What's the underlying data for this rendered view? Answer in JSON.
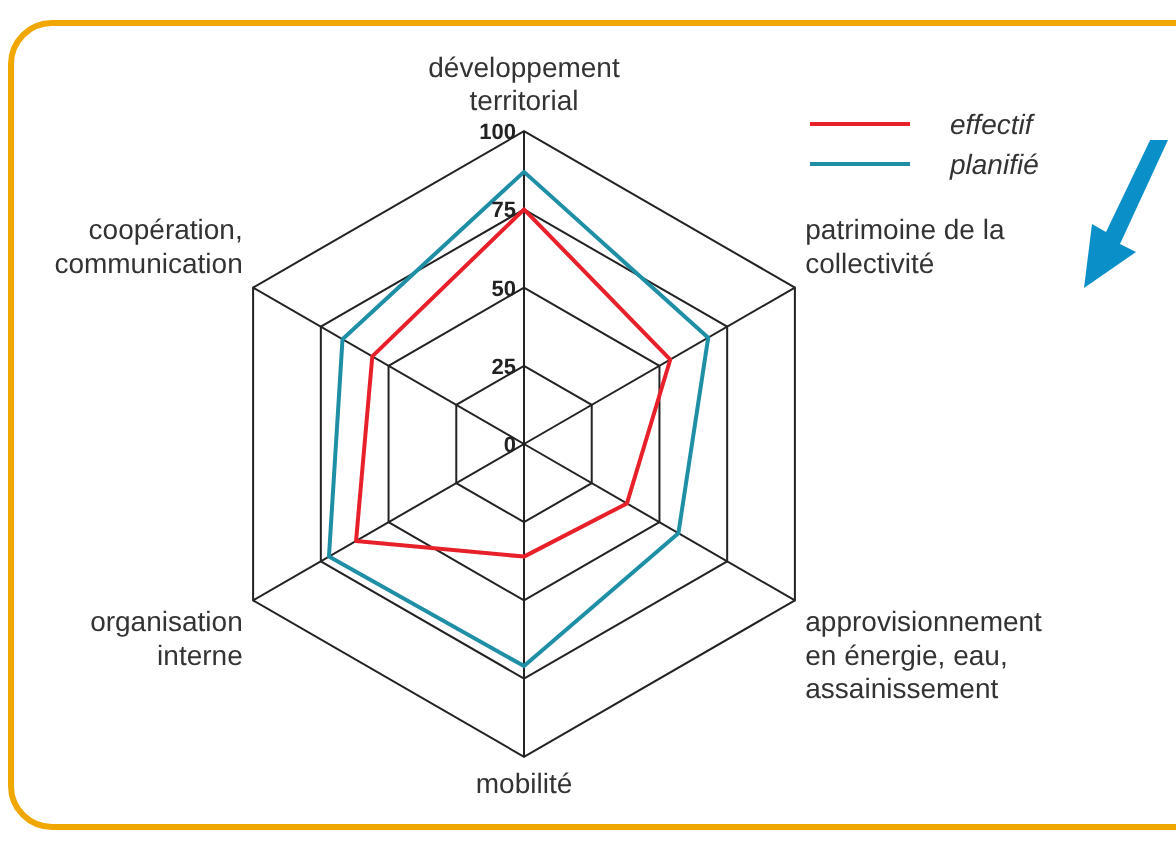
{
  "chart_data": {
    "type": "radar",
    "categories": [
      "développement territorial",
      "patrimoine de la collectivité",
      "approvisionnement en énergie, eau, assainissement",
      "mobilité",
      "organisation interne",
      "coopération, communication"
    ],
    "series": [
      {
        "name": "effectif",
        "color": "#e8202a",
        "values": [
          75,
          54,
          38,
          36,
          62,
          56
        ]
      },
      {
        "name": "planifié",
        "color": "#1f8fa6",
        "values": [
          87,
          68,
          57,
          71,
          72,
          67
        ]
      }
    ],
    "ylim": [
      0,
      100
    ],
    "yticks": [
      0,
      25,
      50,
      75,
      100
    ],
    "grid": true,
    "legend": "top right",
    "marker": "none"
  }
}
